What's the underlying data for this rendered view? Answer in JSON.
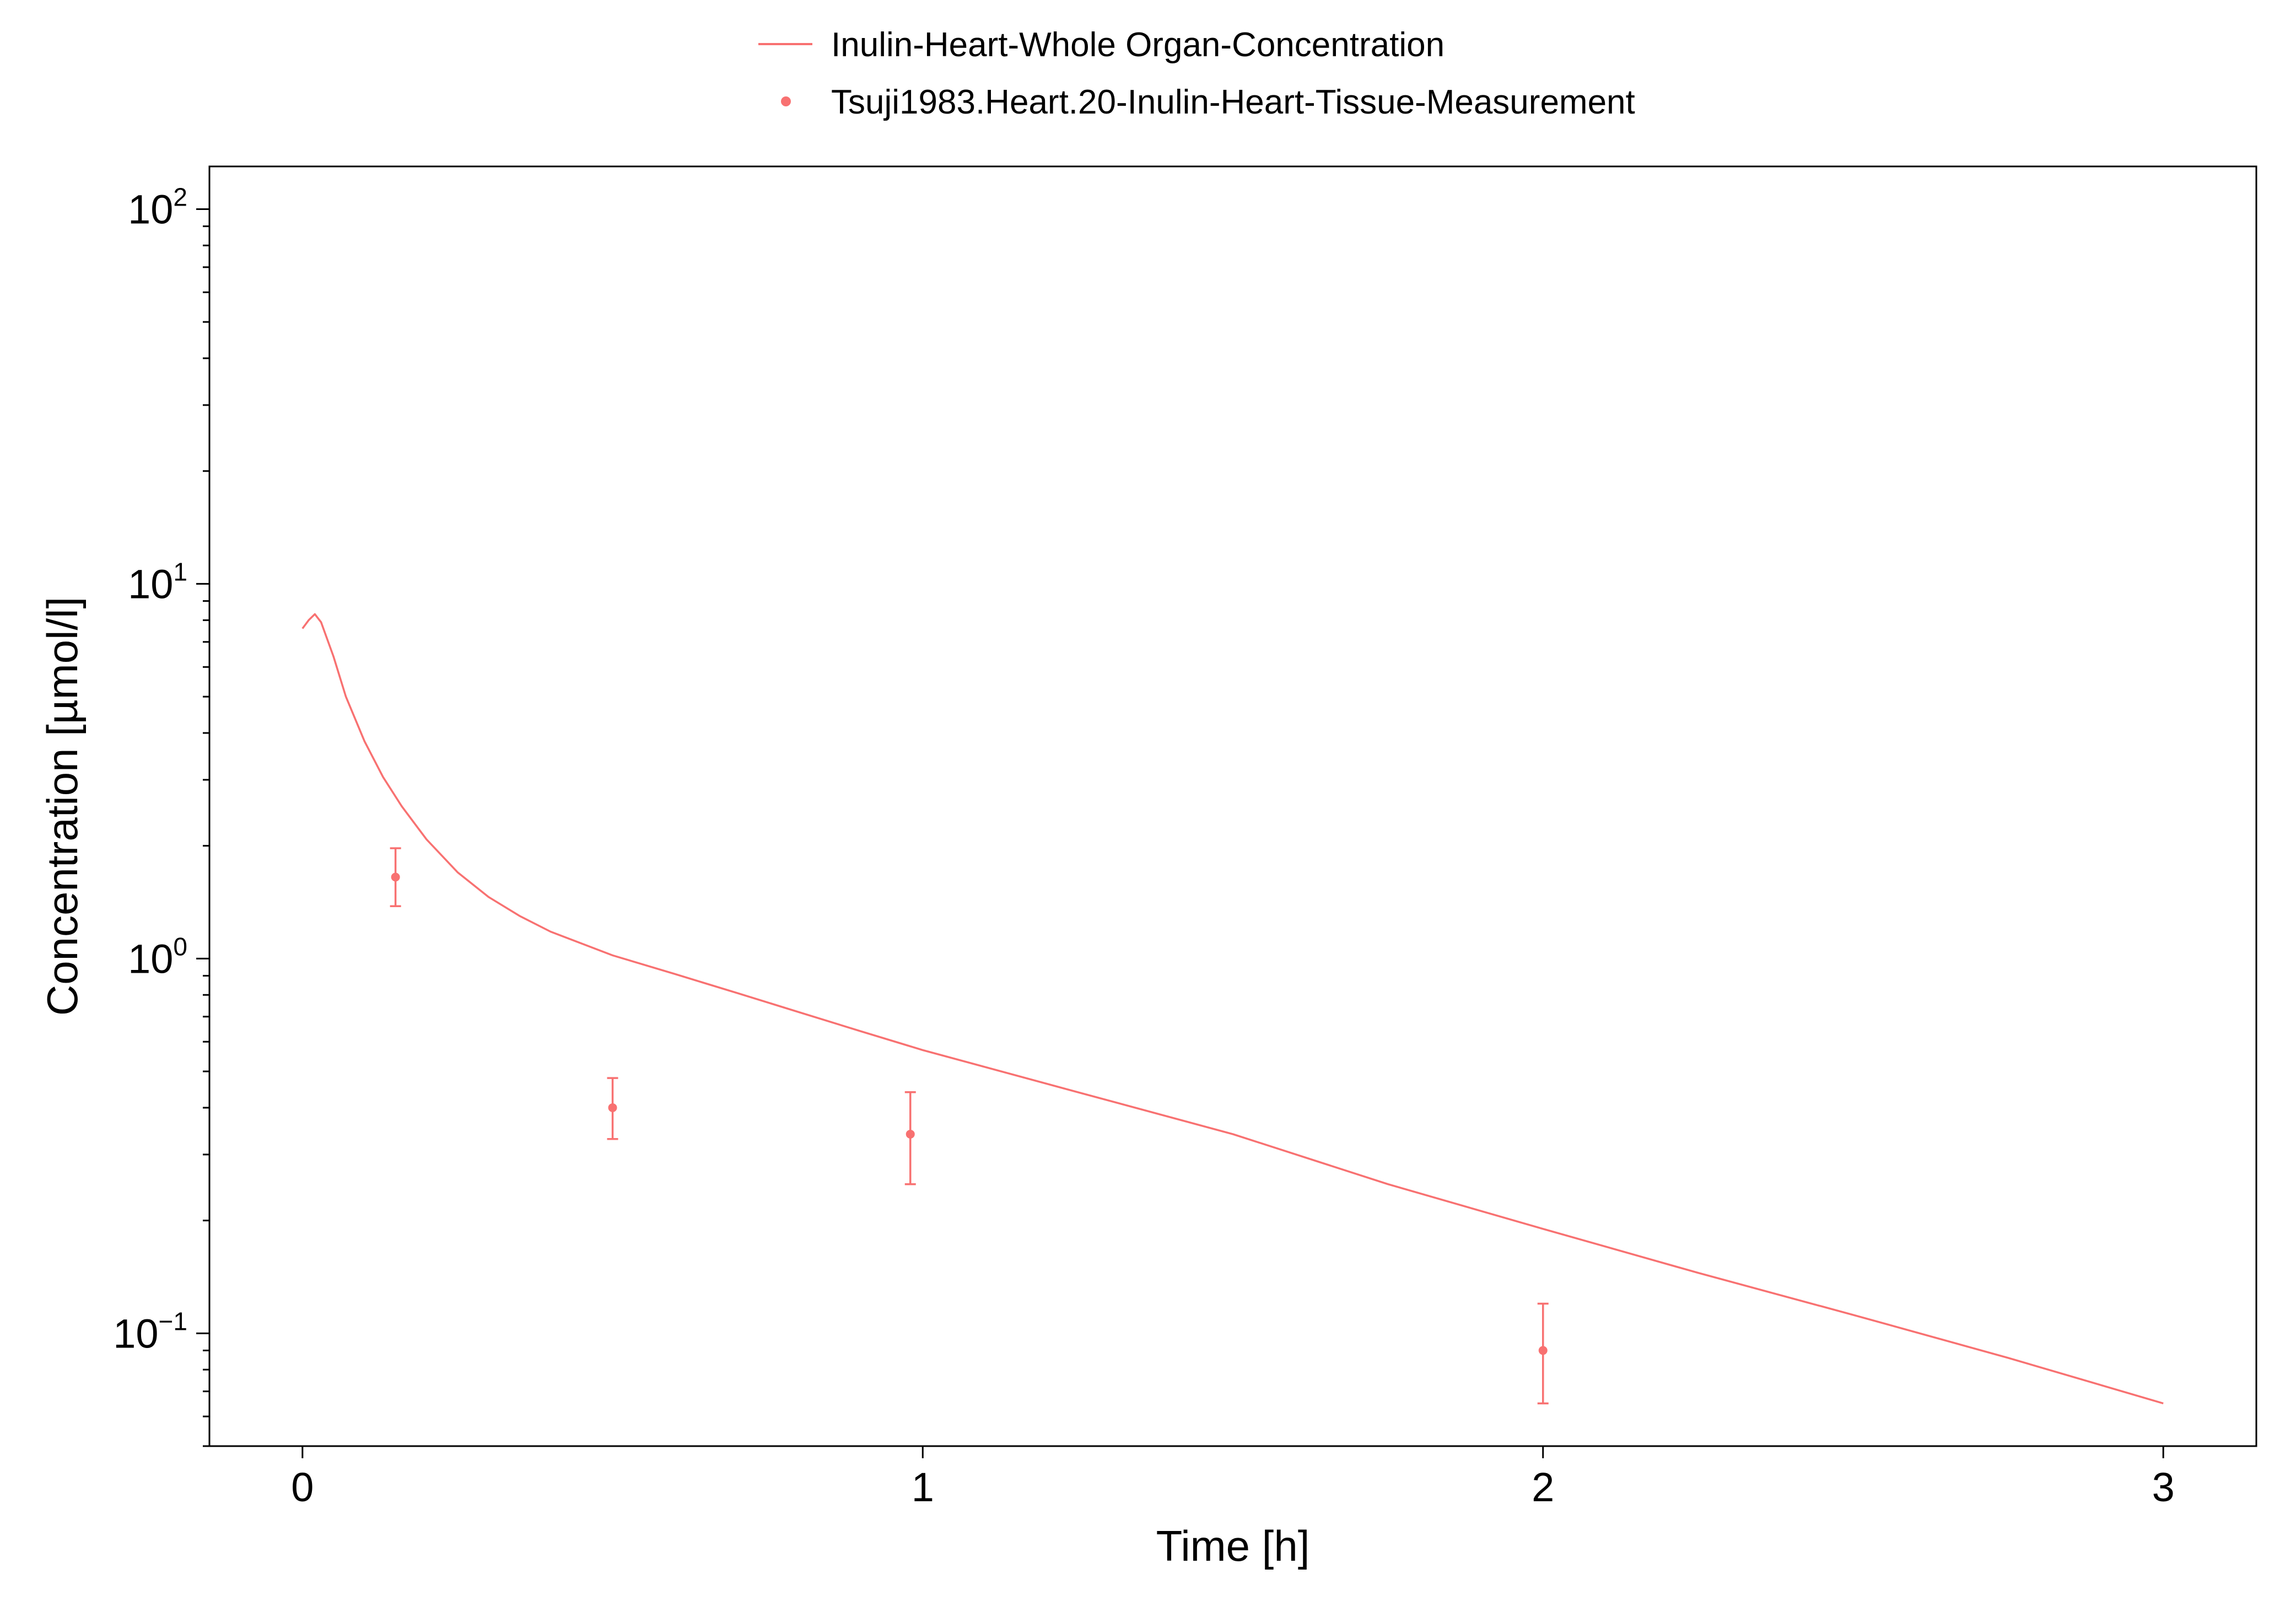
{
  "chart_data": {
    "type": "line",
    "title": "",
    "xlabel": "Time [h]",
    "ylabel": "Concentration [µmol/l]",
    "xlim": [
      -0.15,
      3.15
    ],
    "ylim": [
      0.05,
      130
    ],
    "yscale": "log",
    "grid": false,
    "legend_position": "top-center",
    "x_ticks": [
      0,
      1,
      2,
      3
    ],
    "y_ticks": [
      {
        "value": 0.1,
        "base": "10",
        "exponent": "−1"
      },
      {
        "value": 1,
        "base": "10",
        "exponent": "0"
      },
      {
        "value": 10,
        "base": "10",
        "exponent": "1"
      },
      {
        "value": 100,
        "base": "10",
        "exponent": "2"
      }
    ],
    "series": [
      {
        "name": "Inulin-Heart-Whole Organ-Concentration",
        "kind": "line",
        "color": "#f87171",
        "x": [
          0.0,
          0.01,
          0.02,
          0.03,
          0.05,
          0.07,
          0.1,
          0.13,
          0.16,
          0.2,
          0.25,
          0.3,
          0.35,
          0.4,
          0.5,
          0.6,
          0.7,
          0.8,
          0.9,
          1.0,
          1.25,
          1.5,
          1.75,
          2.0,
          2.25,
          2.5,
          2.75,
          3.0
        ],
        "y": [
          7.6,
          8.0,
          8.3,
          7.9,
          6.4,
          5.0,
          3.8,
          3.05,
          2.55,
          2.08,
          1.7,
          1.46,
          1.3,
          1.18,
          1.02,
          0.91,
          0.81,
          0.72,
          0.64,
          0.57,
          0.44,
          0.34,
          0.25,
          0.19,
          0.145,
          0.112,
          0.086,
          0.065
        ]
      },
      {
        "name": "Tsuji1983.Heart.20-Inulin-Heart-Tissue-Measurement",
        "kind": "scatter",
        "color": "#f87171",
        "points": [
          {
            "x": 0.15,
            "y": 1.65,
            "y_low": 1.38,
            "y_high": 1.97
          },
          {
            "x": 0.5,
            "y": 0.4,
            "y_low": 0.33,
            "y_high": 0.48
          },
          {
            "x": 0.98,
            "y": 0.34,
            "y_low": 0.25,
            "y_high": 0.44
          },
          {
            "x": 2.0,
            "y": 0.09,
            "y_low": 0.065,
            "y_high": 0.12
          }
        ]
      }
    ]
  }
}
